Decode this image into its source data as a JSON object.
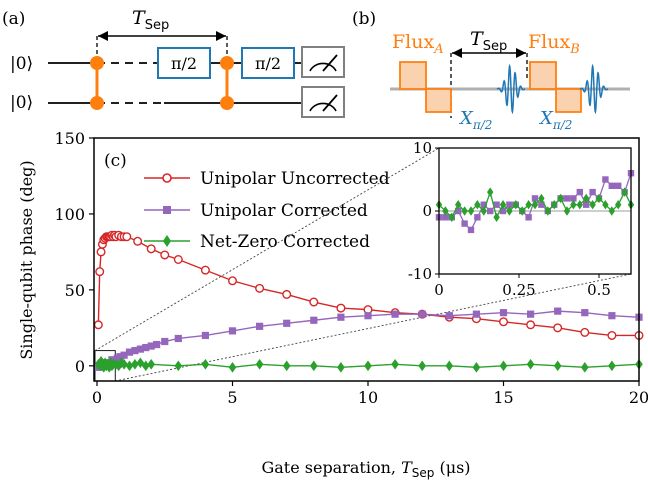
{
  "panel_labels": {
    "a": "(a)",
    "b": "(b)",
    "c": "(c)"
  },
  "circuit": {
    "tsep_label": "T",
    "tsep_sub": "Sep",
    "qubit_labels": [
      "|0⟩",
      "|0⟩"
    ],
    "gate_label": "π/2"
  },
  "pulse_diagram": {
    "flux_a": "Flux",
    "flux_a_sub": "A",
    "flux_b": "Flux",
    "flux_b_sub": "B",
    "tsep_label": "T",
    "tsep_sub": "Sep",
    "x_pulse": "X",
    "x_pulse_sub": "π/2"
  },
  "colors": {
    "unipolar_uncorrected": "#d62728",
    "unipolar_corrected": "#9467bd",
    "net_zero_corrected": "#2ca02c",
    "flux": "#ff7f0e",
    "microwave": "#1f77b4"
  },
  "chart_data": {
    "type": "line",
    "xlabel": "Gate separation, ",
    "xlabel_var": "T",
    "xlabel_sub": "Sep",
    "xlabel_unit": " (μs)",
    "ylabel": "Single-qubit phase (deg)",
    "xlim": [
      0,
      20
    ],
    "ylim": [
      -10,
      150
    ],
    "xticks": [
      "0",
      "5",
      "10",
      "15",
      "20"
    ],
    "yticks": [
      "0",
      "50",
      "100",
      "150"
    ],
    "legend_position": "top-left",
    "series": [
      {
        "name": "Unipolar Uncorrected",
        "marker": "circle",
        "x": [
          0.05,
          0.1,
          0.15,
          0.2,
          0.25,
          0.3,
          0.35,
          0.4,
          0.45,
          0.5,
          0.55,
          0.6,
          0.65,
          0.7,
          0.8,
          0.9,
          1.0,
          1.1,
          1.5,
          2.0,
          2.5,
          3.0,
          4.0,
          5.0,
          6.0,
          7.0,
          8.0,
          9.0,
          10.0,
          11.0,
          12.0,
          13.0,
          14.0,
          15.0,
          16.0,
          17.0,
          18.0,
          19.0,
          20.0
        ],
        "y": [
          27,
          62,
          75,
          80,
          83,
          84,
          85,
          85,
          85,
          85,
          86,
          85,
          86,
          85,
          86,
          85,
          85,
          85,
          82,
          77,
          73,
          70,
          63,
          56,
          51,
          47,
          42,
          38,
          37,
          35,
          34,
          32,
          31,
          29,
          27,
          25,
          22,
          20,
          20
        ]
      },
      {
        "name": "Unipolar Corrected",
        "marker": "square",
        "x": [
          0.05,
          0.15,
          0.25,
          0.35,
          0.45,
          0.55,
          0.65,
          0.75,
          0.85,
          1.0,
          1.2,
          1.4,
          1.6,
          1.8,
          2.0,
          2.2,
          2.5,
          3.0,
          4.0,
          5.0,
          6.0,
          7.0,
          8.0,
          9.0,
          10.0,
          11.0,
          12.0,
          13.0,
          14.0,
          15.0,
          16.0,
          17.0,
          18.0,
          19.0,
          20.0
        ],
        "y": [
          -1,
          0,
          1,
          2,
          2,
          4,
          3,
          5,
          6,
          7,
          9,
          10,
          11,
          12,
          13,
          14,
          16,
          18,
          20,
          23,
          26,
          28,
          30,
          32,
          33,
          34,
          34,
          33,
          34,
          35,
          34,
          36,
          35,
          33,
          32
        ]
      },
      {
        "name": "Net-Zero Corrected",
        "marker": "diamond",
        "x": [
          0.05,
          0.1,
          0.15,
          0.2,
          0.25,
          0.3,
          0.35,
          0.4,
          0.45,
          0.5,
          0.55,
          0.6,
          0.7,
          0.8,
          0.9,
          1.0,
          1.2,
          1.4,
          1.6,
          1.8,
          2.0,
          3.0,
          4.0,
          5.0,
          6.0,
          7.0,
          8.0,
          9.0,
          10.0,
          11.0,
          12.0,
          13.0,
          14.0,
          15.0,
          16.0,
          17.0,
          18.0,
          19.0,
          20.0
        ],
        "y": [
          1,
          0,
          3,
          0,
          -1,
          2,
          0,
          1,
          -1,
          2,
          0,
          1,
          1,
          0,
          2,
          1,
          0,
          1,
          2,
          0,
          1,
          0,
          1,
          -1,
          1,
          0,
          0,
          -1,
          0,
          1,
          0,
          0,
          -1,
          0,
          1,
          0,
          -1,
          0,
          1
        ]
      }
    ],
    "inset": {
      "xlim": [
        0,
        0.6
      ],
      "ylim": [
        -10,
        10
      ],
      "xticks": [
        "0",
        "0.25",
        "0.5"
      ],
      "yticks": [
        "-10",
        "0",
        "10"
      ],
      "unipolar_corrected": {
        "x": [
          0.0,
          0.02,
          0.04,
          0.06,
          0.08,
          0.1,
          0.12,
          0.14,
          0.16,
          0.18,
          0.2,
          0.22,
          0.24,
          0.26,
          0.28,
          0.3,
          0.32,
          0.34,
          0.36,
          0.38,
          0.4,
          0.42,
          0.44,
          0.46,
          0.48,
          0.5,
          0.52,
          0.54,
          0.56,
          0.58,
          0.6
        ],
        "y": [
          -1,
          -1,
          -1,
          0,
          -2,
          -3,
          -1,
          1,
          0,
          1,
          0,
          1,
          1,
          0,
          -1,
          2,
          1,
          0,
          1,
          2,
          2,
          2,
          3,
          1,
          3,
          2,
          5,
          4,
          4,
          3,
          6
        ]
      },
      "net_zero_corrected": {
        "x": [
          0.0,
          0.02,
          0.04,
          0.06,
          0.08,
          0.1,
          0.12,
          0.14,
          0.16,
          0.18,
          0.2,
          0.22,
          0.24,
          0.26,
          0.28,
          0.3,
          0.32,
          0.34,
          0.36,
          0.38,
          0.4,
          0.42,
          0.44,
          0.46,
          0.48,
          0.5,
          0.52,
          0.54,
          0.56,
          0.58,
          0.6
        ],
        "y": [
          1,
          0,
          -1,
          1,
          0,
          0,
          1,
          0,
          3,
          -1,
          1,
          0,
          1,
          0,
          1,
          1,
          2,
          0,
          1,
          2,
          0,
          1,
          1,
          2,
          1,
          2,
          1,
          0,
          1,
          3,
          1
        ]
      }
    }
  }
}
